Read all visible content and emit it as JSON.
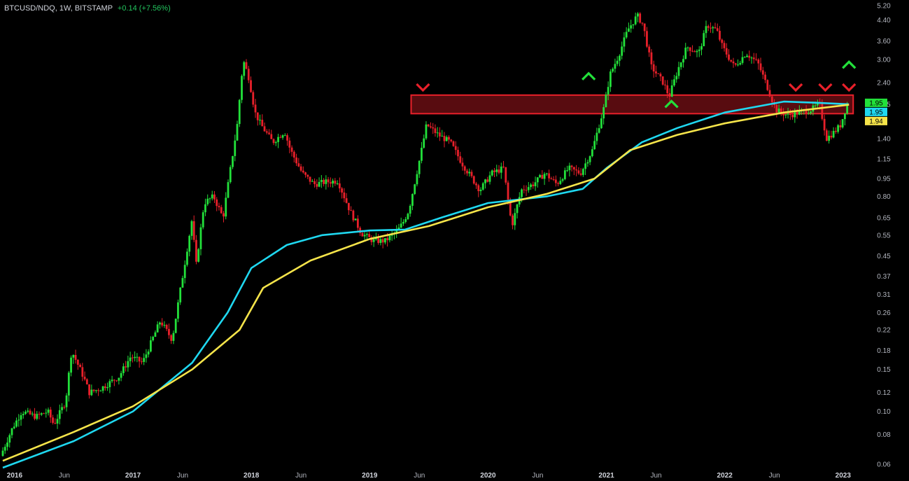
{
  "header": {
    "symbol": "BTCUSD/NDQ, 1W, BITSTAMP",
    "change": "+0.14 (+7.56%)"
  },
  "colors": {
    "background": "#000000",
    "up": "#22e03a",
    "down": "#e8202a",
    "ma_cyan": "#1fd8f0",
    "ma_yellow": "#f5e44a",
    "zone": "#e8202a",
    "label_green": "#22e03a",
    "label_cyan": "#1fd8f0",
    "label_yellow": "#f5e44a"
  },
  "chart_data": {
    "type": "line",
    "title": "BTCUSD/NDQ, 1W, BITSTAMP",
    "scale": "log",
    "ylim": [
      0.058,
      5.2
    ],
    "y_ticks": [
      "5.20",
      "4.40",
      "3.60",
      "3.00",
      "2.40",
      "1.95",
      "1.40",
      "1.15",
      "0.95",
      "0.80",
      "0.65",
      "0.55",
      "0.45",
      "0.37",
      "0.31",
      "0.26",
      "0.22",
      "0.18",
      "0.15",
      "0.12",
      "0.10",
      "0.08",
      "0.06"
    ],
    "x_ticks": [
      {
        "label": "2016",
        "t": 2016.0,
        "year": true
      },
      {
        "label": "Jun",
        "t": 2016.42
      },
      {
        "label": "2017",
        "t": 2017.0,
        "year": true
      },
      {
        "label": "Jun",
        "t": 2017.42
      },
      {
        "label": "2018",
        "t": 2018.0,
        "year": true
      },
      {
        "label": "Jun",
        "t": 2018.42
      },
      {
        "label": "2019",
        "t": 2019.0,
        "year": true
      },
      {
        "label": "Jun",
        "t": 2019.42
      },
      {
        "label": "2020",
        "t": 2020.0,
        "year": true
      },
      {
        "label": "Jun",
        "t": 2020.42
      },
      {
        "label": "2021",
        "t": 2021.0,
        "year": true
      },
      {
        "label": "Jun",
        "t": 2021.42
      },
      {
        "label": "2022",
        "t": 2022.0,
        "year": true
      },
      {
        "label": "Jun",
        "t": 2022.42
      },
      {
        "label": "2023",
        "t": 2023.0,
        "year": true
      }
    ],
    "xlim": [
      2015.9,
      2023.22
    ],
    "price_path": [
      [
        2015.9,
        0.065
      ],
      [
        2016.0,
        0.085
      ],
      [
        2016.08,
        0.1
      ],
      [
        2016.2,
        0.095
      ],
      [
        2016.3,
        0.1
      ],
      [
        2016.35,
        0.088
      ],
      [
        2016.45,
        0.11
      ],
      [
        2016.5,
        0.18
      ],
      [
        2016.6,
        0.14
      ],
      [
        2016.65,
        0.12
      ],
      [
        2016.75,
        0.125
      ],
      [
        2016.9,
        0.14
      ],
      [
        2017.0,
        0.17
      ],
      [
        2017.1,
        0.16
      ],
      [
        2017.2,
        0.21
      ],
      [
        2017.25,
        0.24
      ],
      [
        2017.35,
        0.2
      ],
      [
        2017.45,
        0.4
      ],
      [
        2017.52,
        0.65
      ],
      [
        2017.55,
        0.4
      ],
      [
        2017.62,
        0.75
      ],
      [
        2017.7,
        0.8
      ],
      [
        2017.78,
        0.65
      ],
      [
        2017.85,
        1.1
      ],
      [
        2017.9,
        1.6
      ],
      [
        2017.95,
        3.0
      ],
      [
        2018.0,
        2.5
      ],
      [
        2018.05,
        1.8
      ],
      [
        2018.1,
        1.6
      ],
      [
        2018.2,
        1.35
      ],
      [
        2018.3,
        1.5
      ],
      [
        2018.35,
        1.25
      ],
      [
        2018.45,
        1.0
      ],
      [
        2018.55,
        0.9
      ],
      [
        2018.65,
        0.92
      ],
      [
        2018.75,
        0.93
      ],
      [
        2018.85,
        0.7
      ],
      [
        2018.95,
        0.56
      ],
      [
        2019.05,
        0.52
      ],
      [
        2019.15,
        0.52
      ],
      [
        2019.25,
        0.57
      ],
      [
        2019.3,
        0.62
      ],
      [
        2019.35,
        0.7
      ],
      [
        2019.45,
        1.2
      ],
      [
        2019.5,
        1.6
      ],
      [
        2019.6,
        1.45
      ],
      [
        2019.7,
        1.35
      ],
      [
        2019.8,
        1.1
      ],
      [
        2019.95,
        0.85
      ],
      [
        2020.05,
        1.0
      ],
      [
        2020.15,
        1.05
      ],
      [
        2020.22,
        0.6
      ],
      [
        2020.3,
        0.85
      ],
      [
        2020.4,
        0.9
      ],
      [
        2020.5,
        1.0
      ],
      [
        2020.6,
        0.9
      ],
      [
        2020.7,
        1.05
      ],
      [
        2020.8,
        1.0
      ],
      [
        2020.9,
        1.25
      ],
      [
        2021.0,
        1.9
      ],
      [
        2021.05,
        2.6
      ],
      [
        2021.12,
        3.1
      ],
      [
        2021.2,
        4.0
      ],
      [
        2021.28,
        4.6
      ],
      [
        2021.33,
        4.2
      ],
      [
        2021.4,
        2.8
      ],
      [
        2021.5,
        2.4
      ],
      [
        2021.55,
        2.1
      ],
      [
        2021.62,
        2.7
      ],
      [
        2021.7,
        3.4
      ],
      [
        2021.8,
        3.2
      ],
      [
        2021.87,
        4.2
      ],
      [
        2021.95,
        4.0
      ],
      [
        2022.0,
        3.4
      ],
      [
        2022.1,
        2.8
      ],
      [
        2022.2,
        3.2
      ],
      [
        2022.3,
        2.9
      ],
      [
        2022.38,
        2.3
      ],
      [
        2022.45,
        1.85
      ],
      [
        2022.55,
        1.75
      ],
      [
        2022.65,
        1.8
      ],
      [
        2022.75,
        1.85
      ],
      [
        2022.82,
        1.95
      ],
      [
        2022.88,
        1.4
      ],
      [
        2022.95,
        1.5
      ],
      [
        2023.0,
        1.6
      ],
      [
        2023.05,
        1.95
      ]
    ],
    "series": [
      {
        "values": [
          [
            2015.9,
            0.058
          ],
          [
            2016.5,
            0.075
          ],
          [
            2017.0,
            0.1
          ],
          [
            2017.5,
            0.16
          ],
          [
            2017.8,
            0.26
          ],
          [
            2018.0,
            0.4
          ],
          [
            2018.3,
            0.5
          ],
          [
            2018.6,
            0.55
          ],
          [
            2019.0,
            0.575
          ],
          [
            2019.3,
            0.58
          ],
          [
            2019.6,
            0.65
          ],
          [
            2020.0,
            0.75
          ],
          [
            2020.5,
            0.8
          ],
          [
            2020.8,
            0.86
          ],
          [
            2021.0,
            1.05
          ],
          [
            2021.3,
            1.35
          ],
          [
            2021.6,
            1.55
          ],
          [
            2022.0,
            1.8
          ],
          [
            2022.5,
            2.0
          ],
          [
            2022.75,
            1.98
          ],
          [
            2023.05,
            1.95
          ]
        ]
      },
      {
        "values": [
          [
            2015.9,
            0.062
          ],
          [
            2016.5,
            0.082
          ],
          [
            2017.0,
            0.105
          ],
          [
            2017.5,
            0.15
          ],
          [
            2017.9,
            0.22
          ],
          [
            2018.1,
            0.33
          ],
          [
            2018.5,
            0.43
          ],
          [
            2019.0,
            0.53
          ],
          [
            2019.5,
            0.6
          ],
          [
            2020.0,
            0.72
          ],
          [
            2020.5,
            0.82
          ],
          [
            2020.9,
            0.95
          ],
          [
            2021.2,
            1.25
          ],
          [
            2021.6,
            1.45
          ],
          [
            2022.0,
            1.62
          ],
          [
            2022.5,
            1.8
          ],
          [
            2023.05,
            1.94
          ]
        ]
      }
    ],
    "zone": {
      "top": 2.13,
      "bottom": 1.78,
      "start": 2019.35,
      "end": 2023.05
    },
    "markers": [
      {
        "type": "down",
        "t": 2019.45,
        "value": 2.3
      },
      {
        "type": "up",
        "t": 2020.85,
        "value": 2.55
      },
      {
        "type": "up",
        "t": 2021.55,
        "value": 1.95
      },
      {
        "type": "down",
        "t": 2022.6,
        "value": 2.3
      },
      {
        "type": "down",
        "t": 2022.85,
        "value": 2.3
      },
      {
        "type": "down",
        "t": 2023.05,
        "value": 2.3
      },
      {
        "type": "up",
        "t": 2023.05,
        "value": 2.85
      }
    ],
    "price_labels": [
      {
        "text": "1.95",
        "value": 1.95,
        "color": "label_green"
      },
      {
        "text": "1.95",
        "value": 1.95,
        "color": "label_cyan"
      },
      {
        "text": "1.94",
        "value": 1.94,
        "color": "label_yellow"
      }
    ]
  }
}
